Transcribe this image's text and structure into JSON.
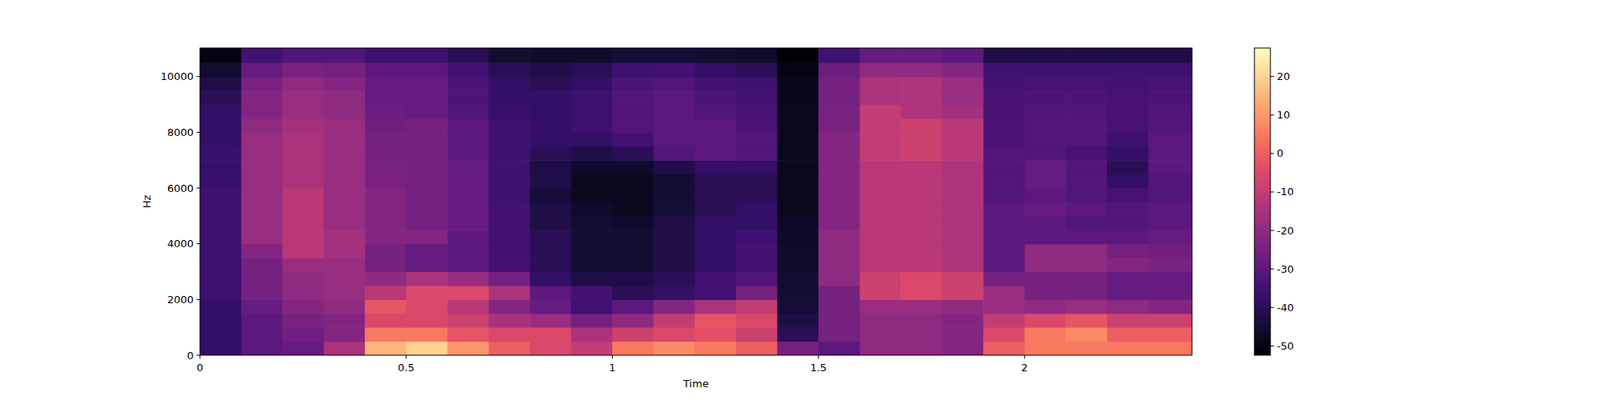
{
  "chart_data": {
    "type": "heatmap",
    "x_label": "Time",
    "y_label": "Hz",
    "x_bins": [
      0,
      0.1,
      0.2,
      0.3,
      0.4,
      0.5,
      0.6,
      0.7,
      0.8,
      0.9,
      1.0,
      1.1,
      1.2,
      1.3,
      1.4,
      1.5,
      1.6,
      1.7,
      1.8,
      1.9,
      2.0,
      2.1,
      2.2,
      2.3,
      2.406
    ],
    "y_bins": [
      0,
      500,
      1000,
      1500,
      2000,
      2500,
      3000,
      3500,
      4000,
      4500,
      5000,
      5500,
      6000,
      6500,
      7000,
      7500,
      8000,
      8500,
      9000,
      9500,
      10000,
      10500,
      11025
    ],
    "values": [
      [
        -38,
        -30,
        -28,
        -15,
        15,
        20,
        10,
        0,
        -5,
        -10,
        5,
        8,
        5,
        0,
        -25,
        -30,
        -20,
        -20,
        -22,
        0,
        5,
        5,
        5,
        5
      ],
      [
        -38,
        -30,
        -26,
        -22,
        5,
        5,
        -2,
        -5,
        -5,
        -15,
        -8,
        -5,
        -3,
        -8,
        -40,
        -25,
        -20,
        -20,
        -22,
        -5,
        5,
        8,
        0,
        0
      ],
      [
        -38,
        -30,
        -24,
        -22,
        -5,
        -5,
        -8,
        -15,
        -18,
        -25,
        -20,
        -10,
        -2,
        -5,
        -42,
        -25,
        -20,
        -20,
        -22,
        -10,
        -5,
        -2,
        -8,
        -8
      ],
      [
        -38,
        -28,
        -22,
        -20,
        -2,
        -5,
        -12,
        -22,
        -28,
        -35,
        -30,
        -22,
        -15,
        -10,
        -44,
        -25,
        -18,
        -18,
        -20,
        -18,
        -20,
        -18,
        -20,
        -22
      ],
      [
        -36,
        -25,
        -20,
        -18,
        -12,
        -5,
        -5,
        -15,
        -30,
        -35,
        -40,
        -38,
        -35,
        -25,
        -45,
        -25,
        -8,
        -5,
        -8,
        -18,
        -25,
        -25,
        -28,
        -28
      ],
      [
        -36,
        -25,
        -20,
        -18,
        -20,
        -15,
        -18,
        -25,
        -38,
        -42,
        -42,
        -40,
        -35,
        -32,
        -45,
        -20,
        -8,
        -5,
        -8,
        -25,
        -25,
        -25,
        -28,
        -28
      ],
      [
        -36,
        -25,
        -18,
        -18,
        -25,
        -28,
        -30,
        -35,
        -40,
        -45,
        -45,
        -42,
        -38,
        -35,
        -46,
        -20,
        -12,
        -12,
        -14,
        -30,
        -20,
        -20,
        -22,
        -24
      ],
      [
        -36,
        -22,
        -12,
        -16,
        -25,
        -28,
        -30,
        -35,
        -40,
        -45,
        -45,
        -42,
        -38,
        -35,
        -46,
        -20,
        -12,
        -12,
        -14,
        -30,
        -20,
        -20,
        -25,
        -26
      ],
      [
        -36,
        -18,
        -12,
        -16,
        -22,
        -22,
        -30,
        -35,
        -40,
        -45,
        -45,
        -42,
        -38,
        -36,
        -47,
        -20,
        -12,
        -12,
        -14,
        -30,
        -30,
        -30,
        -30,
        -28
      ],
      [
        -36,
        -18,
        -12,
        -18,
        -22,
        -25,
        -28,
        -35,
        -42,
        -45,
        -46,
        -42,
        -38,
        -38,
        -47,
        -22,
        -12,
        -12,
        -14,
        -30,
        -30,
        -32,
        -32,
        -30
      ],
      [
        -36,
        -18,
        -12,
        -18,
        -22,
        -25,
        -28,
        -35,
        -42,
        -46,
        -48,
        -44,
        -40,
        -38,
        -48,
        -22,
        -12,
        -12,
        -14,
        -30,
        -28,
        -30,
        -32,
        -30
      ],
      [
        -36,
        -18,
        -12,
        -18,
        -22,
        -25,
        -28,
        -36,
        -44,
        -48,
        -48,
        -45,
        -40,
        -40,
        -48,
        -22,
        -12,
        -12,
        -14,
        -32,
        -30,
        -32,
        -34,
        -32
      ],
      [
        -37,
        -18,
        -15,
        -18,
        -24,
        -25,
        -28,
        -36,
        -42,
        -48,
        -48,
        -45,
        -40,
        -40,
        -48,
        -22,
        -12,
        -12,
        -14,
        -32,
        -28,
        -32,
        -38,
        -32
      ],
      [
        -37,
        -18,
        -15,
        -18,
        -24,
        -25,
        -28,
        -36,
        -42,
        -46,
        -46,
        -42,
        -38,
        -38,
        -48,
        -22,
        -12,
        -12,
        -14,
        -32,
        -28,
        -32,
        -40,
        -30
      ],
      [
        -37,
        -18,
        -15,
        -18,
        -25,
        -25,
        -30,
        -36,
        -40,
        -42,
        -40,
        -32,
        -30,
        -32,
        -48,
        -22,
        -10,
        -8,
        -12,
        -32,
        -32,
        -34,
        -38,
        -30
      ],
      [
        -38,
        -18,
        -15,
        -18,
        -25,
        -25,
        -30,
        -36,
        -38,
        -38,
        -35,
        -30,
        -30,
        -32,
        -48,
        -22,
        -10,
        -8,
        -12,
        -33,
        -32,
        -32,
        -36,
        -30
      ],
      [
        -38,
        -20,
        -16,
        -18,
        -26,
        -25,
        -30,
        -36,
        -38,
        -36,
        -32,
        -30,
        -30,
        -33,
        -48,
        -24,
        -10,
        -8,
        -12,
        -33,
        -32,
        -32,
        -34,
        -32
      ],
      [
        -38,
        -22,
        -18,
        -20,
        -27,
        -28,
        -32,
        -37,
        -38,
        -36,
        -32,
        -30,
        -32,
        -34,
        -48,
        -24,
        -10,
        -14,
        -16,
        -34,
        -32,
        -32,
        -34,
        -32
      ],
      [
        -40,
        -22,
        -18,
        -20,
        -28,
        -28,
        -33,
        -38,
        -38,
        -36,
        -32,
        -30,
        -33,
        -35,
        -49,
        -25,
        -15,
        -14,
        -18,
        -34,
        -33,
        -33,
        -34,
        -33
      ],
      [
        -42,
        -24,
        -20,
        -22,
        -28,
        -28,
        -33,
        -38,
        -40,
        -38,
        -33,
        -32,
        -35,
        -36,
        -49,
        -25,
        -15,
        -14,
        -18,
        -35,
        -34,
        -34,
        -35,
        -34
      ],
      [
        -45,
        -28,
        -24,
        -25,
        -30,
        -30,
        -35,
        -40,
        -42,
        -40,
        -36,
        -35,
        -38,
        -40,
        -50,
        -27,
        -20,
        -20,
        -22,
        -36,
        -36,
        -36,
        -36,
        -36
      ],
      [
        -50,
        -35,
        -32,
        -32,
        -36,
        -36,
        -40,
        -45,
        -46,
        -46,
        -44,
        -44,
        -45,
        -46,
        -52,
        -35,
        -28,
        -28,
        -30,
        -42,
        -42,
        -42,
        -42,
        -42
      ]
    ],
    "xlim": [
      0,
      2.406
    ],
    "ylim": [
      0,
      11025
    ],
    "xticks": [
      0,
      0.5,
      1,
      1.5,
      2
    ],
    "yticks": [
      0,
      2000,
      4000,
      6000,
      8000,
      10000
    ],
    "color_range": [
      -52.4,
      27.4
    ],
    "color_ticks": [
      -50,
      -40,
      -30,
      -20,
      -10,
      0,
      10,
      20
    ]
  }
}
